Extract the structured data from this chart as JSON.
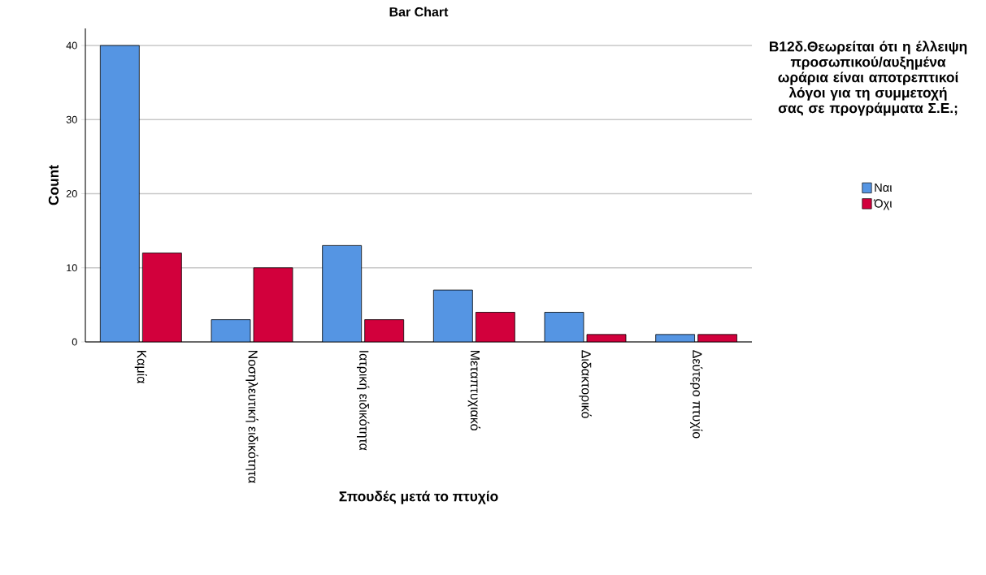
{
  "chart_data": {
    "type": "bar",
    "title": "Bar Chart",
    "xlabel": "Σπουδές μετά το πτυχίο",
    "ylabel": "Count",
    "legend_title": "Β12δ.Θεωρείται ότι η έλλειψη προσωπικού/αυξημένα ωράρια είναι αποτρεπτικοί λόγοι για τη συμμετοχή σας σε προγράμματα Σ.Ε.;",
    "categories": [
      "Καμία",
      "Νοσηλευτική ειδικότητα",
      "Ιατρική ειδικότητα",
      "Μεταπτυχιακό",
      "Διδακτορικό",
      "Δεύτερο πτυχίο"
    ],
    "series": [
      {
        "name": "Ναι",
        "color": "#5595e3",
        "values": [
          40,
          3,
          13,
          7,
          4,
          1
        ]
      },
      {
        "name": "Όχι",
        "color": "#d2003c",
        "values": [
          12,
          10,
          3,
          4,
          1,
          1
        ]
      }
    ],
    "ylim": [
      0,
      42.3
    ],
    "yticks": [
      0,
      10,
      20,
      30,
      40
    ],
    "grid": "y",
    "legend": "right"
  }
}
